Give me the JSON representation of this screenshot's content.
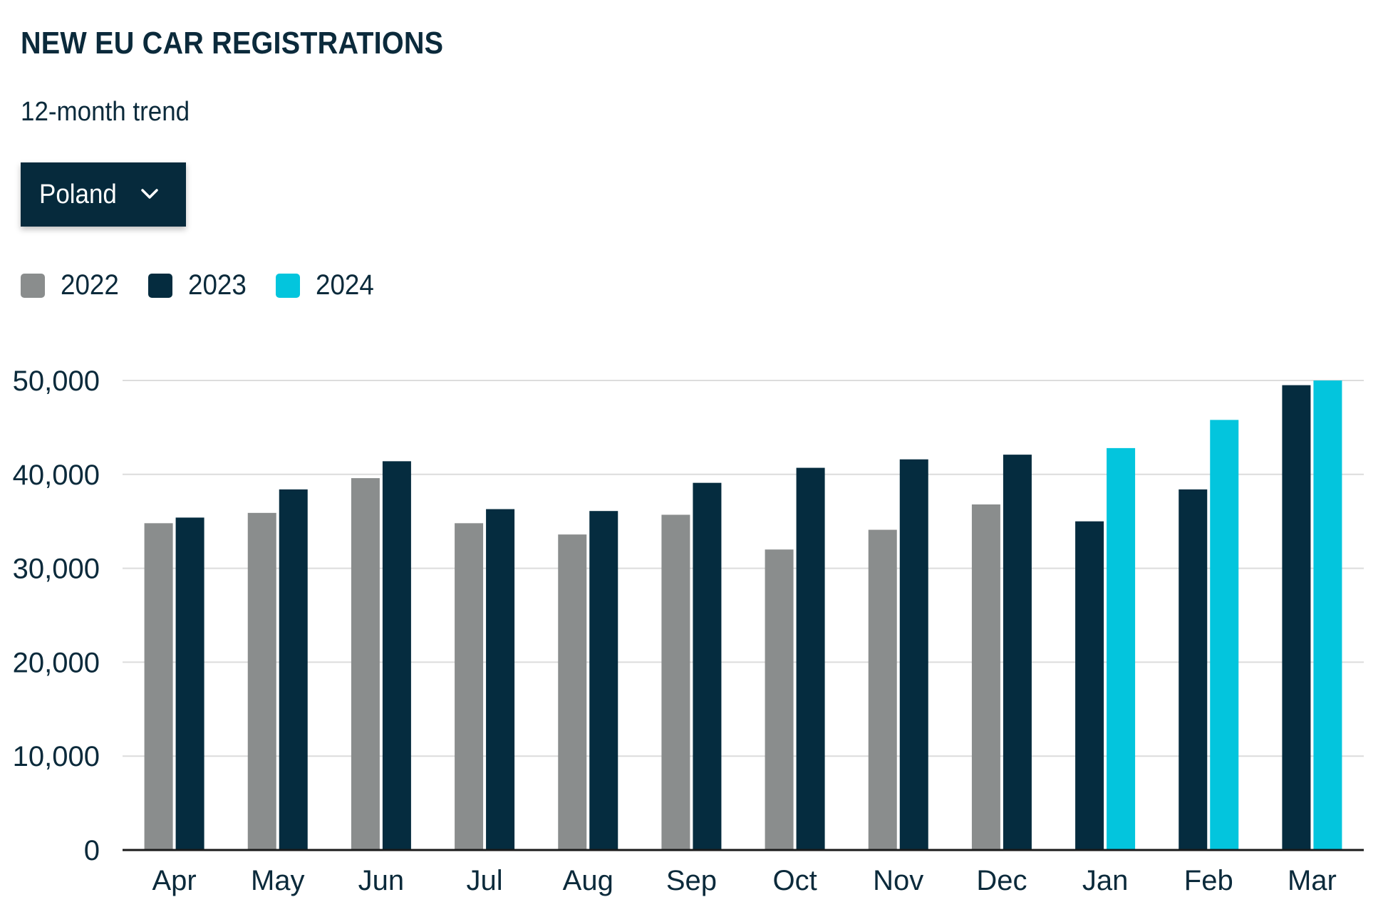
{
  "title": "NEW EU CAR REGISTRATIONS",
  "subtitle": "12-month trend",
  "country_select": {
    "selected": "Poland",
    "icon": "chevron-down-icon"
  },
  "legend": [
    {
      "label": "2022",
      "color": "#8a8d8d"
    },
    {
      "label": "2023",
      "color": "#052c3f"
    },
    {
      "label": "2024",
      "color": "#03c5dd"
    }
  ],
  "chart_data": {
    "type": "bar",
    "categories": [
      "Apr",
      "May",
      "Jun",
      "Jul",
      "Aug",
      "Sep",
      "Oct",
      "Nov",
      "Dec",
      "Jan",
      "Feb",
      "Mar"
    ],
    "series": [
      {
        "name": "2022",
        "color": "#8a8d8d",
        "values": [
          34800,
          35900,
          39600,
          34800,
          33600,
          35700,
          32000,
          34100,
          36800,
          null,
          null,
          null
        ]
      },
      {
        "name": "2023",
        "color": "#052c3f",
        "values": [
          35400,
          38400,
          41400,
          36300,
          36100,
          39100,
          40700,
          41600,
          42100,
          35000,
          38400,
          49500
        ]
      },
      {
        "name": "2024",
        "color": "#03c5dd",
        "values": [
          null,
          null,
          null,
          null,
          null,
          null,
          null,
          null,
          null,
          42800,
          45800,
          50000
        ]
      }
    ],
    "ylim": [
      0,
      50000
    ],
    "yticks": [
      0,
      10000,
      20000,
      30000,
      40000,
      50000
    ],
    "ytick_labels": [
      "0",
      "10,000",
      "20,000",
      "30,000",
      "40,000",
      "50,000"
    ],
    "grid": true,
    "legend_position": "top-left"
  }
}
